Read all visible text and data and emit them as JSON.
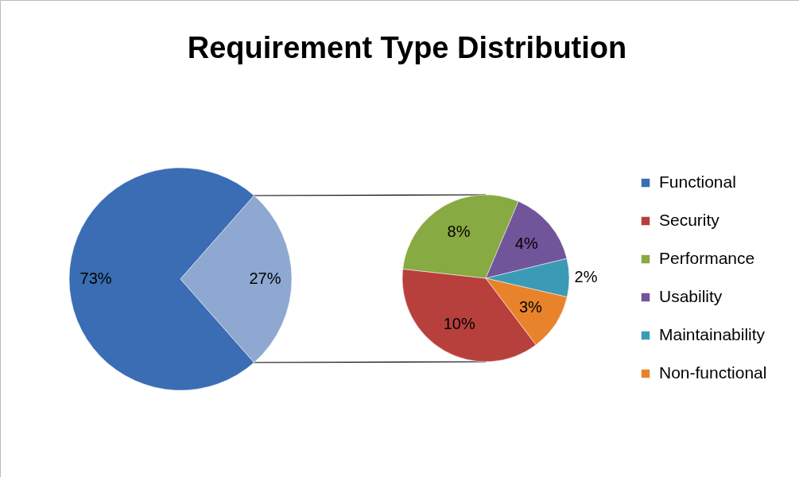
{
  "chart_data": [
    {
      "type": "pie",
      "title": "Requirement Type Distribution",
      "categories": [
        "Functional",
        null
      ],
      "values": [
        73,
        27
      ],
      "colors": [
        "#3a6db3",
        "#8ea8d2"
      ],
      "value_labels": [
        "73%",
        "27%"
      ],
      "legend": "right"
    },
    {
      "type": "pie",
      "categories": [
        "Security",
        "Performance",
        "Usability",
        "Maintainability",
        "Non-functional"
      ],
      "values": [
        10,
        8,
        4,
        2,
        3
      ],
      "colors": [
        "#b8403c",
        "#88aa42",
        "#71559a",
        "#3b9bb6",
        "#e8832c"
      ],
      "value_labels": [
        "10%",
        "8%",
        "4%",
        "2%",
        "3%"
      ],
      "legend": "right"
    }
  ]
}
